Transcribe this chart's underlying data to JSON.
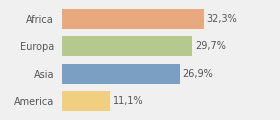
{
  "categories": [
    "Africa",
    "Europa",
    "Asia",
    "America"
  ],
  "values": [
    32.3,
    29.7,
    26.9,
    11.1
  ],
  "labels": [
    "32,3%",
    "29,7%",
    "26,9%",
    "11,1%"
  ],
  "bar_colors": [
    "#e8a97e",
    "#b5c98e",
    "#7a9fc2",
    "#f0d080"
  ],
  "background_color": "#f0f0f0",
  "xlim": [
    0,
    42
  ],
  "bar_height": 0.72,
  "label_fontsize": 7.0,
  "tick_fontsize": 7.0,
  "label_color": "#555555",
  "tick_color": "#555555"
}
